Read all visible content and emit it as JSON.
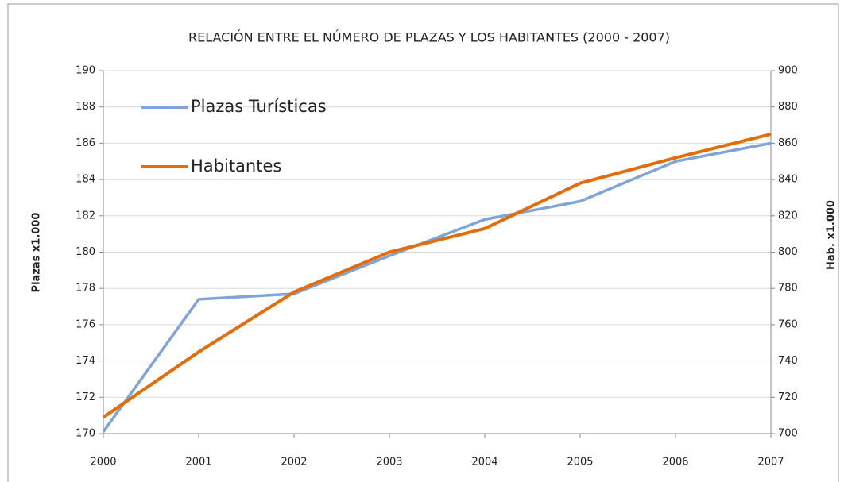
{
  "chart_data": {
    "type": "line",
    "title": "RELACIÓN ENTRE EL NÚMERO DE PLAZAS Y LOS  HABITANTES (2000 - 2007)",
    "y_label": "Plazas x1.000",
    "y2_label": "Hab. x1.000",
    "categories": [
      "2000",
      "2001",
      "2002",
      "2003",
      "2004",
      "2005",
      "2006",
      "2007"
    ],
    "series": [
      {
        "name": "Plazas Turísticas",
        "color": "#7ea4d8",
        "values": [
          170.1,
          177.4,
          177.7,
          179.8,
          181.8,
          182.8,
          185.0,
          186.0
        ]
      },
      {
        "name": "Habitantes",
        "color": "#e46c0a",
        "axis": "y2",
        "values": [
          709,
          745,
          778,
          800,
          813,
          838,
          852,
          865
        ]
      }
    ],
    "ylim": [
      170,
      190
    ],
    "yticks": [
      170,
      172,
      174,
      176,
      178,
      180,
      182,
      184,
      186,
      188,
      190
    ],
    "y2lim": [
      700,
      900
    ],
    "y2ticks": [
      700,
      720,
      740,
      760,
      780,
      800,
      820,
      840,
      860,
      880,
      900
    ],
    "grid": true,
    "legend": "top-left"
  }
}
